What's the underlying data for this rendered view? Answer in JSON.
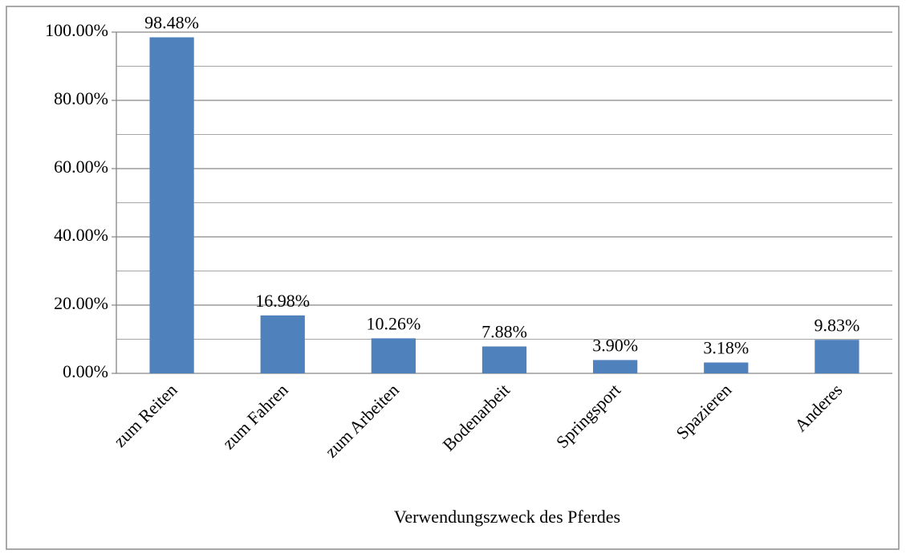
{
  "chart_data": {
    "type": "bar",
    "x_label": "Verwendungszweck des Pferdes",
    "categories": [
      "zum Reiten",
      "zum Fahren",
      "zum Arbeiten",
      "Bodenarbeit",
      "Springsport",
      "Spazieren",
      "Anderes"
    ],
    "values": [
      98.48,
      16.98,
      10.26,
      7.88,
      3.9,
      3.18,
      9.83
    ],
    "value_labels": [
      "98.48%",
      "16.98%",
      "10.26%",
      "7.88%",
      "3.90%",
      "3.18%",
      "9.83%"
    ],
    "color": "#4f81bd",
    "ylim": [
      0,
      100
    ],
    "yticks": [
      {
        "value": 0,
        "label": "0.00%"
      },
      {
        "value": 20,
        "label": "20.00%"
      },
      {
        "value": 40,
        "label": "40.00%"
      },
      {
        "value": 60,
        "label": "60.00%"
      },
      {
        "value": 80,
        "label": "80.00%"
      },
      {
        "value": 100,
        "label": "100.00%"
      }
    ],
    "minor_yticks": [
      10,
      30,
      50,
      70,
      90
    ],
    "grid": true
  }
}
